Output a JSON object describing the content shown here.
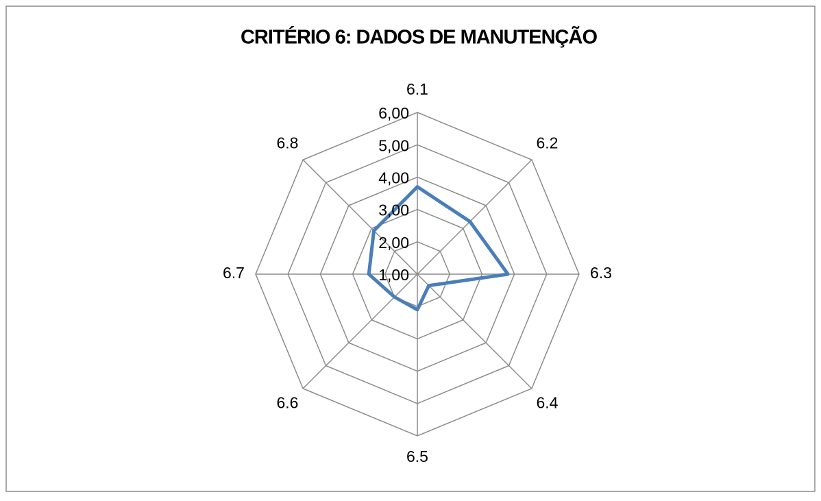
{
  "chart_data": {
    "type": "radar",
    "title": "CRITÉRIO 6: DADOS DE MANUTENÇÃO",
    "categories": [
      "6.1",
      "6.2",
      "6.3",
      "6.4",
      "6.5",
      "6.6",
      "6.7",
      "6.8"
    ],
    "series": [
      {
        "color": "#4a7ebb",
        "values": [
          3.7,
          3.3,
          3.8,
          1.5,
          2.1,
          2.0,
          2.5,
          2.9
        ]
      }
    ],
    "ylim": [
      1,
      6
    ],
    "yticks": [
      {
        "value": 1,
        "label": "1,00"
      },
      {
        "value": 2,
        "label": "2,00"
      },
      {
        "value": 3,
        "label": "3,00"
      },
      {
        "value": 4,
        "label": "4,00"
      },
      {
        "value": 5,
        "label": "5,00"
      },
      {
        "value": 6,
        "label": "6,00"
      }
    ],
    "grid": true
  }
}
